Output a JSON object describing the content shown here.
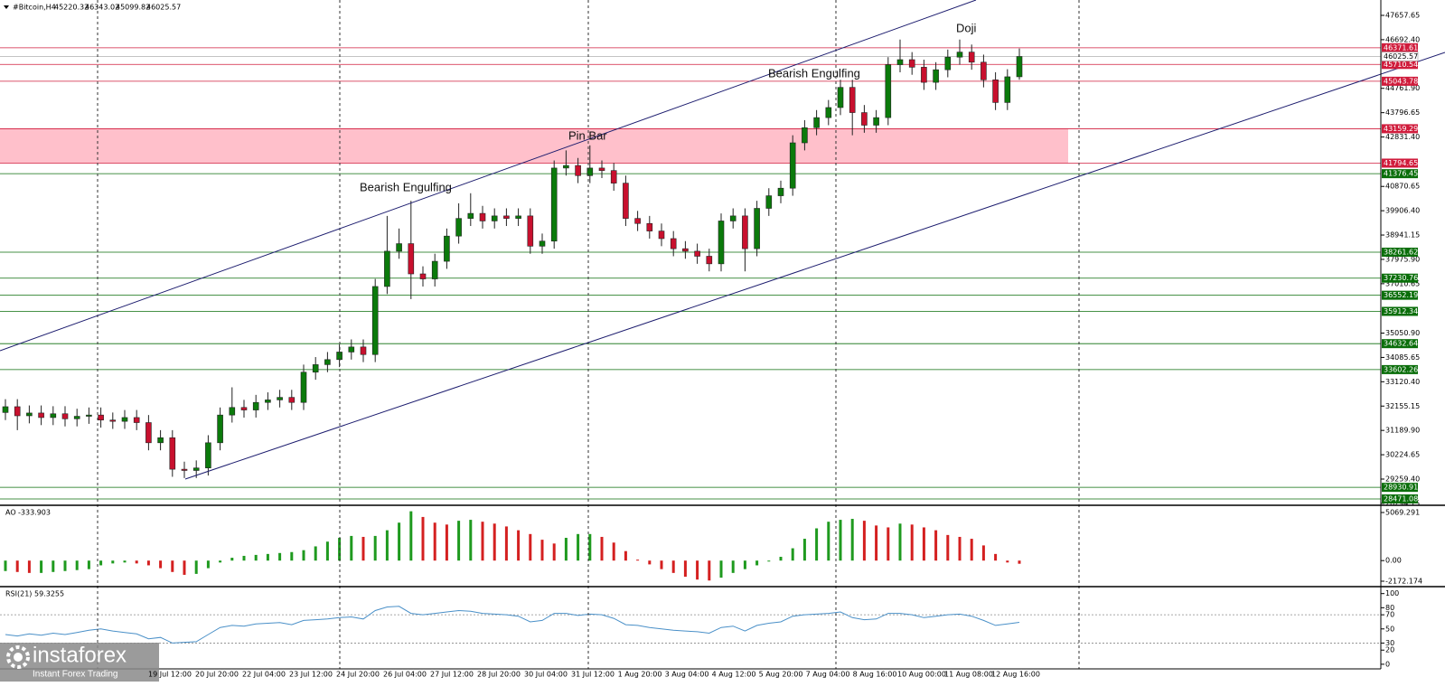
{
  "chart_data": [
    {
      "type": "candlestick",
      "title": "#Bitcoin,H4",
      "open": [
        31900,
        32130,
        31770,
        31880,
        31700,
        31850,
        31650,
        31750,
        31800,
        31600,
        31550,
        31700,
        31500,
        30700,
        30900,
        29650,
        29600,
        29700,
        30700,
        31800,
        32100,
        32000,
        32300,
        32400,
        32500,
        32300,
        33500,
        33800,
        34000,
        34300,
        34500,
        34200,
        36900,
        38300,
        38600,
        37400,
        37200,
        37900,
        38900,
        39600,
        39800,
        39500,
        39700,
        39600,
        39700,
        38500,
        38700,
        41600,
        41700,
        41300,
        41600,
        41500,
        41000,
        39600,
        39400,
        39100,
        38800,
        38400,
        38300,
        38100,
        37800,
        39500,
        39700,
        38400,
        40000,
        40500,
        40800,
        42600,
        43200,
        43600,
        44000,
        44800,
        43800,
        43300,
        43600,
        45700,
        45900,
        45600,
        45000,
        45500,
        46000,
        46200,
        45800,
        45100,
        44200,
        45220.32
      ],
      "high": [
        32430,
        32430,
        32180,
        32180,
        32150,
        32150,
        32050,
        32100,
        32100,
        31900,
        32000,
        32000,
        31800,
        31200,
        31200,
        29950,
        30000,
        31000,
        32100,
        32900,
        32400,
        32600,
        32700,
        32800,
        32800,
        33800,
        34100,
        34300,
        34600,
        34800,
        34800,
        37200,
        39700,
        39200,
        40300,
        37700,
        38200,
        39200,
        40200,
        40600,
        40100,
        40000,
        40000,
        40000,
        40000,
        39000,
        41900,
        42300,
        42000,
        42500,
        41900,
        41800,
        41300,
        39900,
        39700,
        39400,
        39100,
        38700,
        38600,
        38400,
        39800,
        40000,
        40000,
        40300,
        40800,
        41100,
        42900,
        43500,
        43900,
        44300,
        45100,
        45100,
        44100,
        43900,
        46000,
        46700,
        46200,
        45900,
        45800,
        46300,
        46700,
        46500,
        46100,
        45400,
        45520,
        46343.02
      ],
      "low": [
        31600,
        31200,
        31470,
        31400,
        31400,
        31350,
        31350,
        31450,
        31300,
        31250,
        31250,
        31200,
        30400,
        30400,
        29350,
        29300,
        29300,
        29400,
        30400,
        31500,
        31700,
        31700,
        32000,
        32100,
        32000,
        32000,
        33200,
        33500,
        33700,
        34000,
        33900,
        33900,
        36600,
        38000,
        36400,
        36900,
        36900,
        37600,
        38600,
        39300,
        39200,
        39200,
        39300,
        39300,
        38200,
        38200,
        38400,
        41300,
        41000,
        41000,
        41200,
        40700,
        39300,
        39100,
        38800,
        38500,
        38100,
        38000,
        37800,
        37500,
        37500,
        39200,
        37500,
        38100,
        39700,
        40200,
        40500,
        42300,
        42900,
        43300,
        43700,
        42900,
        43000,
        43000,
        43300,
        45400,
        45300,
        44700,
        44700,
        45200,
        45700,
        45500,
        44800,
        43900,
        43900,
        45099.82
      ],
      "close": [
        32130,
        31770,
        31880,
        31700,
        31850,
        31650,
        31750,
        31800,
        31600,
        31550,
        31700,
        31500,
        30700,
        30900,
        29650,
        29600,
        29700,
        30700,
        31800,
        32100,
        32000,
        32300,
        32400,
        32500,
        32300,
        33500,
        33800,
        34000,
        34300,
        34500,
        34200,
        36900,
        38300,
        38600,
        37400,
        37200,
        37900,
        38900,
        39600,
        39800,
        39500,
        39700,
        39600,
        39700,
        38500,
        38700,
        41600,
        41700,
        41300,
        41600,
        41500,
        41000,
        39600,
        39400,
        39100,
        38800,
        38400,
        38300,
        38100,
        37800,
        39500,
        39700,
        38400,
        40000,
        40500,
        40800,
        42600,
        43200,
        43600,
        44000,
        44800,
        43800,
        43300,
        43600,
        45700,
        45900,
        45600,
        45000,
        45500,
        46000,
        46200,
        45800,
        45100,
        44200,
        45220.32,
        46025.57
      ],
      "up_color": "#0b7a0b",
      "down_color": "#c8102e",
      "x_labels": [
        "19 Jul 12:00",
        "20 Jul 20:00",
        "22 Jul 04:00",
        "23 Jul 12:00",
        "24 Jul 20:00",
        "26 Jul 04:00",
        "27 Jul 12:00",
        "28 Jul 20:00",
        "30 Jul 04:00",
        "31 Jul 12:00",
        "1 Aug 20:00",
        "3 Aug 04:00",
        "4 Aug 12:00",
        "5 Aug 20:00",
        "7 Aug 04:00",
        "8 Aug 16:00",
        "10 Aug 00:00",
        "11 Aug 08:00",
        "12 Aug 16:00"
      ],
      "ylim": [
        28255,
        48267
      ],
      "yticks": [
        47657.65,
        {
          "value": 46692.4,
          "label": "46692.40"
        },
        {
          "value": 44761.9,
          "label": "44761.90"
        },
        43796.65,
        {
          "value": 42831.4,
          "label": "42831.40"
        },
        40870.65,
        {
          "value": 39906.4,
          "label": "39906.40"
        },
        38941.15,
        {
          "value": 37975.9,
          "label": "37975.90"
        },
        37010.65,
        {
          "value": 35050.9,
          "label": "35050.90"
        },
        34085.65,
        {
          "value": 33120.4,
          "label": "33120.40"
        },
        32155.15,
        {
          "value": 31189.9,
          "label": "31189.90"
        },
        30224.65,
        {
          "value": 29259.4,
          "label": "29259.40"
        },
        28294.15
      ],
      "levels": [
        {
          "value": 46371.61,
          "color": "#d01c3c"
        },
        {
          "value": 45710.54,
          "color": "#d01c3c"
        },
        {
          "value": 45043.78,
          "color": "#d01c3c"
        },
        {
          "value": 43159.29,
          "color": "#d01c3c"
        },
        {
          "value": 41794.65,
          "color": "#d01c3c"
        },
        {
          "value": 41376.45,
          "color": "#0a6e0a"
        },
        {
          "value": 38261.62,
          "color": "#0a6e0a"
        },
        {
          "value": 37230.76,
          "color": "#0a6e0a"
        },
        {
          "value": 36552.19,
          "color": "#0a6e0a"
        },
        {
          "value": 35912.34,
          "color": "#0a6e0a"
        },
        {
          "value": 34632.64,
          "color": "#0a6e0a"
        },
        {
          "value": 33602.26,
          "color": "#0a6e0a"
        },
        {
          "value": 28930.91,
          "color": "#0a6e0a"
        },
        {
          "value": 28471.08,
          "color": "#0a6e0a"
        }
      ],
      "zone": {
        "top": 43159.29,
        "bottom": 41794.65,
        "color": "#ffc0cb"
      },
      "annotations": [
        "Bearish Engulfing",
        "Pin Bar",
        "Bearish Engulfing",
        "Doji"
      ]
    },
    {
      "type": "bar",
      "title": "AO",
      "values": [
        -1100,
        -1200,
        -1300,
        -1300,
        -1200,
        -1100,
        -1000,
        -900,
        -500,
        -300,
        -200,
        -300,
        -500,
        -800,
        -1200,
        -1500,
        -1400,
        -800,
        -200,
        300,
        500,
        600,
        700,
        800,
        900,
        1100,
        1500,
        2000,
        2400,
        2600,
        2500,
        2600,
        3200,
        4000,
        5200,
        4600,
        4000,
        3800,
        4200,
        4300,
        4100,
        3900,
        3600,
        3200,
        2800,
        2200,
        1800,
        2400,
        2800,
        2800,
        2500,
        1900,
        1000,
        100,
        -400,
        -900,
        -1300,
        -1700,
        -2000,
        -2100,
        -1800,
        -1300,
        -900,
        -500,
        -100,
        400,
        1300,
        2300,
        3400,
        4100,
        4300,
        4400,
        4200,
        3700,
        3500,
        3900,
        3800,
        3500,
        3200,
        2700,
        2500,
        2300,
        1600,
        700,
        -200,
        -333.903
      ],
      "up_color": "#1f9a1f",
      "down_color": "#d42020",
      "ylim": [
        -2649,
        5546
      ],
      "yticks": [
        5069.291,
        {
          "value": 0,
          "label": "0.00"
        },
        -2172.174
      ]
    },
    {
      "type": "line",
      "title": "RSI(21)",
      "values": [
        42,
        40,
        43,
        41,
        44,
        42,
        45,
        48,
        50,
        47,
        45,
        43,
        36,
        38,
        30,
        31,
        32,
        42,
        52,
        55,
        54,
        57,
        58,
        59,
        56,
        62,
        63,
        64,
        66,
        67,
        64,
        76,
        81,
        82,
        72,
        70,
        72,
        74,
        76,
        75,
        72,
        71,
        70,
        68,
        60,
        62,
        72,
        72,
        69,
        71,
        70,
        65,
        56,
        55,
        52,
        50,
        48,
        47,
        46,
        44,
        52,
        54,
        47,
        55,
        58,
        60,
        68,
        70,
        71,
        72,
        74,
        66,
        63,
        64,
        72,
        72,
        70,
        66,
        68,
        70,
        71,
        68,
        62,
        55,
        57,
        59.3255
      ],
      "color": "#4a90c8",
      "ylim": [
        -4,
        106
      ],
      "yticks": [
        100,
        80,
        70,
        50,
        30,
        20,
        0
      ],
      "dotted_levels": [
        70,
        30
      ]
    }
  ],
  "watermark": {
    "brand": "instaforex",
    "tagline": "Instant Forex Trading"
  }
}
